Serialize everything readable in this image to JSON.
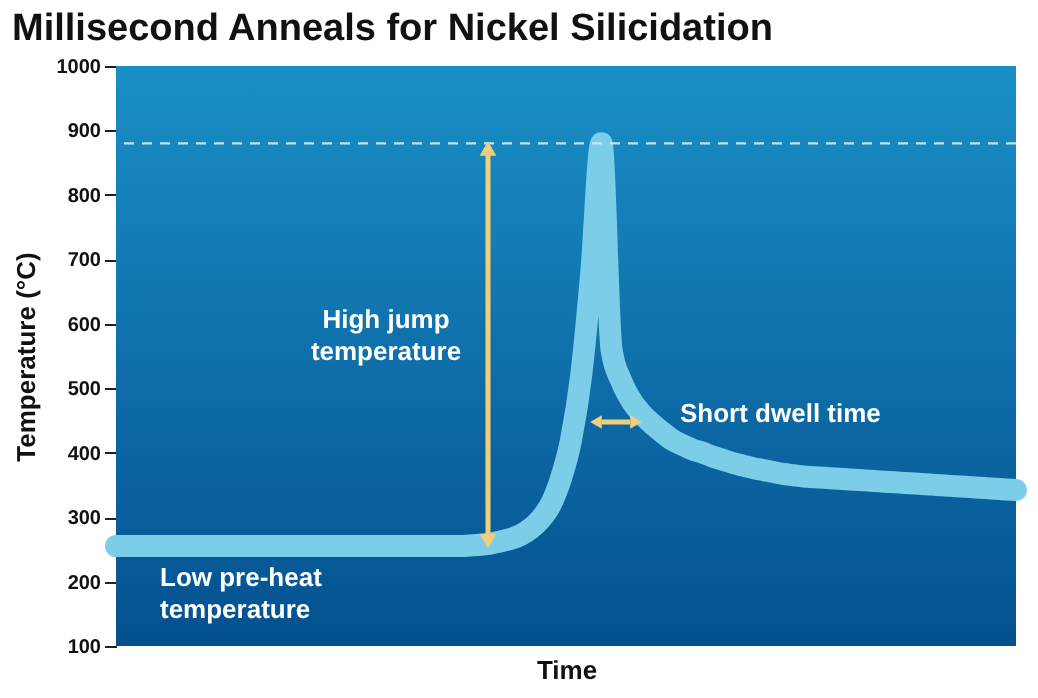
{
  "chart_data": {
    "type": "line",
    "title": "Millisecond Anneals for Nickel Silicidation",
    "xlabel": "Time",
    "ylabel": "Temperature (°C)",
    "categories": [
      null,
      null,
      null,
      null,
      null,
      null,
      null,
      null,
      null,
      null,
      null,
      null,
      null,
      null,
      null,
      null,
      null,
      null,
      null,
      null,
      null,
      null,
      null,
      null,
      null,
      null,
      null,
      null,
      null,
      null,
      null,
      null,
      null,
      null,
      null,
      null,
      null,
      null,
      null,
      null,
      null,
      null,
      null,
      null,
      null,
      null,
      null,
      null,
      null,
      null,
      null,
      null,
      null,
      null,
      null,
      null,
      null,
      null,
      null,
      null,
      null,
      null,
      null,
      null,
      null,
      null,
      null,
      null,
      null,
      null,
      null,
      null,
      null,
      null,
      null,
      null,
      null,
      null,
      null,
      null,
      null,
      null,
      null,
      null,
      null,
      null,
      null,
      null,
      null,
      null
    ],
    "values": [
      255,
      255,
      255,
      255,
      255,
      255,
      255,
      255,
      255,
      255,
      255,
      255,
      255,
      255,
      255,
      255,
      255,
      255,
      255,
      255,
      255,
      255,
      255,
      255,
      255,
      255,
      255,
      255,
      255,
      255,
      255,
      255,
      255,
      255,
      255,
      256,
      257,
      259,
      262,
      266,
      272,
      282,
      297,
      320,
      360,
      420,
      520,
      680,
      880,
      560,
      510,
      480,
      460,
      445,
      432,
      420,
      412,
      405,
      400,
      394,
      389,
      384,
      380,
      376,
      373,
      370,
      367,
      365,
      363,
      362,
      361,
      360,
      359,
      358,
      357,
      356,
      355,
      354,
      353,
      352,
      351,
      350,
      349,
      348,
      347,
      346,
      345,
      344,
      343,
      342
    ],
    "color": "#7ccde8",
    "ylim": [
      100,
      1000
    ],
    "yticks": [
      100,
      200,
      300,
      400,
      500,
      600,
      700,
      800,
      900,
      1000
    ],
    "ref_lines": [
      {
        "axis": "y",
        "value": 880,
        "color": "#bfe6f5",
        "line_style": "dashed"
      }
    ],
    "annotations": [
      "High jump\ntemperature",
      "Short dwell time",
      "Low pre-heat\ntemperature"
    ]
  }
}
